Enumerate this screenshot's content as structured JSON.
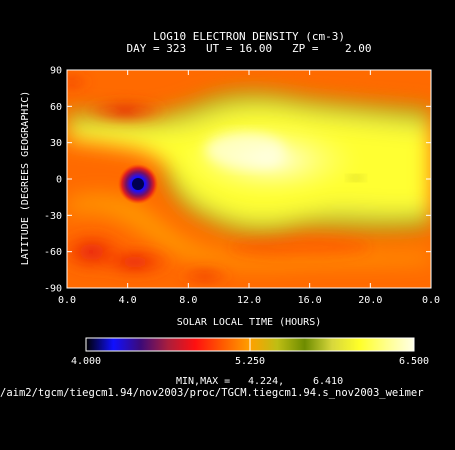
{
  "chart_data": {
    "type": "heatmap",
    "title": "LOG10 ELECTRON DENSITY (cm-3)",
    "subtitle": "DAY = 323   UT = 16.00   ZP =    2.00",
    "xlabel": "SOLAR LOCAL TIME (HOURS)",
    "ylabel": "LATITUDE (DEGREES GEOGRAPHIC)",
    "x_ticks": [
      "0.0",
      "4.0",
      "8.0",
      "12.0",
      "16.0",
      "20.0",
      "0.0"
    ],
    "y_ticks": [
      "90",
      "60",
      "30",
      "0",
      "-30",
      "-60",
      "-90"
    ],
    "xlim": [
      0,
      24
    ],
    "ylim": [
      -90,
      90
    ],
    "colorbar": {
      "min": 4.0,
      "max": 6.5,
      "tick_labels": [
        "4.000",
        "5.250",
        "6.500"
      ],
      "colors": [
        "#000000",
        "#1010ff",
        "#3c0a78",
        "#aa1e3c",
        "#ff1010",
        "#ff5a00",
        "#ffa000",
        "#bebe14",
        "#6e8c00",
        "#d7d73c",
        "#ffff28",
        "#ffff8c",
        "#ffffe6"
      ]
    },
    "minmax_label": "MIN,MAX =",
    "min": "4.224,",
    "max": "6.410",
    "grid": false,
    "features": [
      {
        "x": 4.6,
        "y": 0,
        "value": 4.22
      },
      {
        "x": 13,
        "y": 5,
        "value": 6.41
      }
    ]
  },
  "footer": {
    "path": "/aim2/tgcm/tiegcm1.94/nov2003/proc/TGCM.tiegcm1.94.s_nov2003_weimer"
  }
}
